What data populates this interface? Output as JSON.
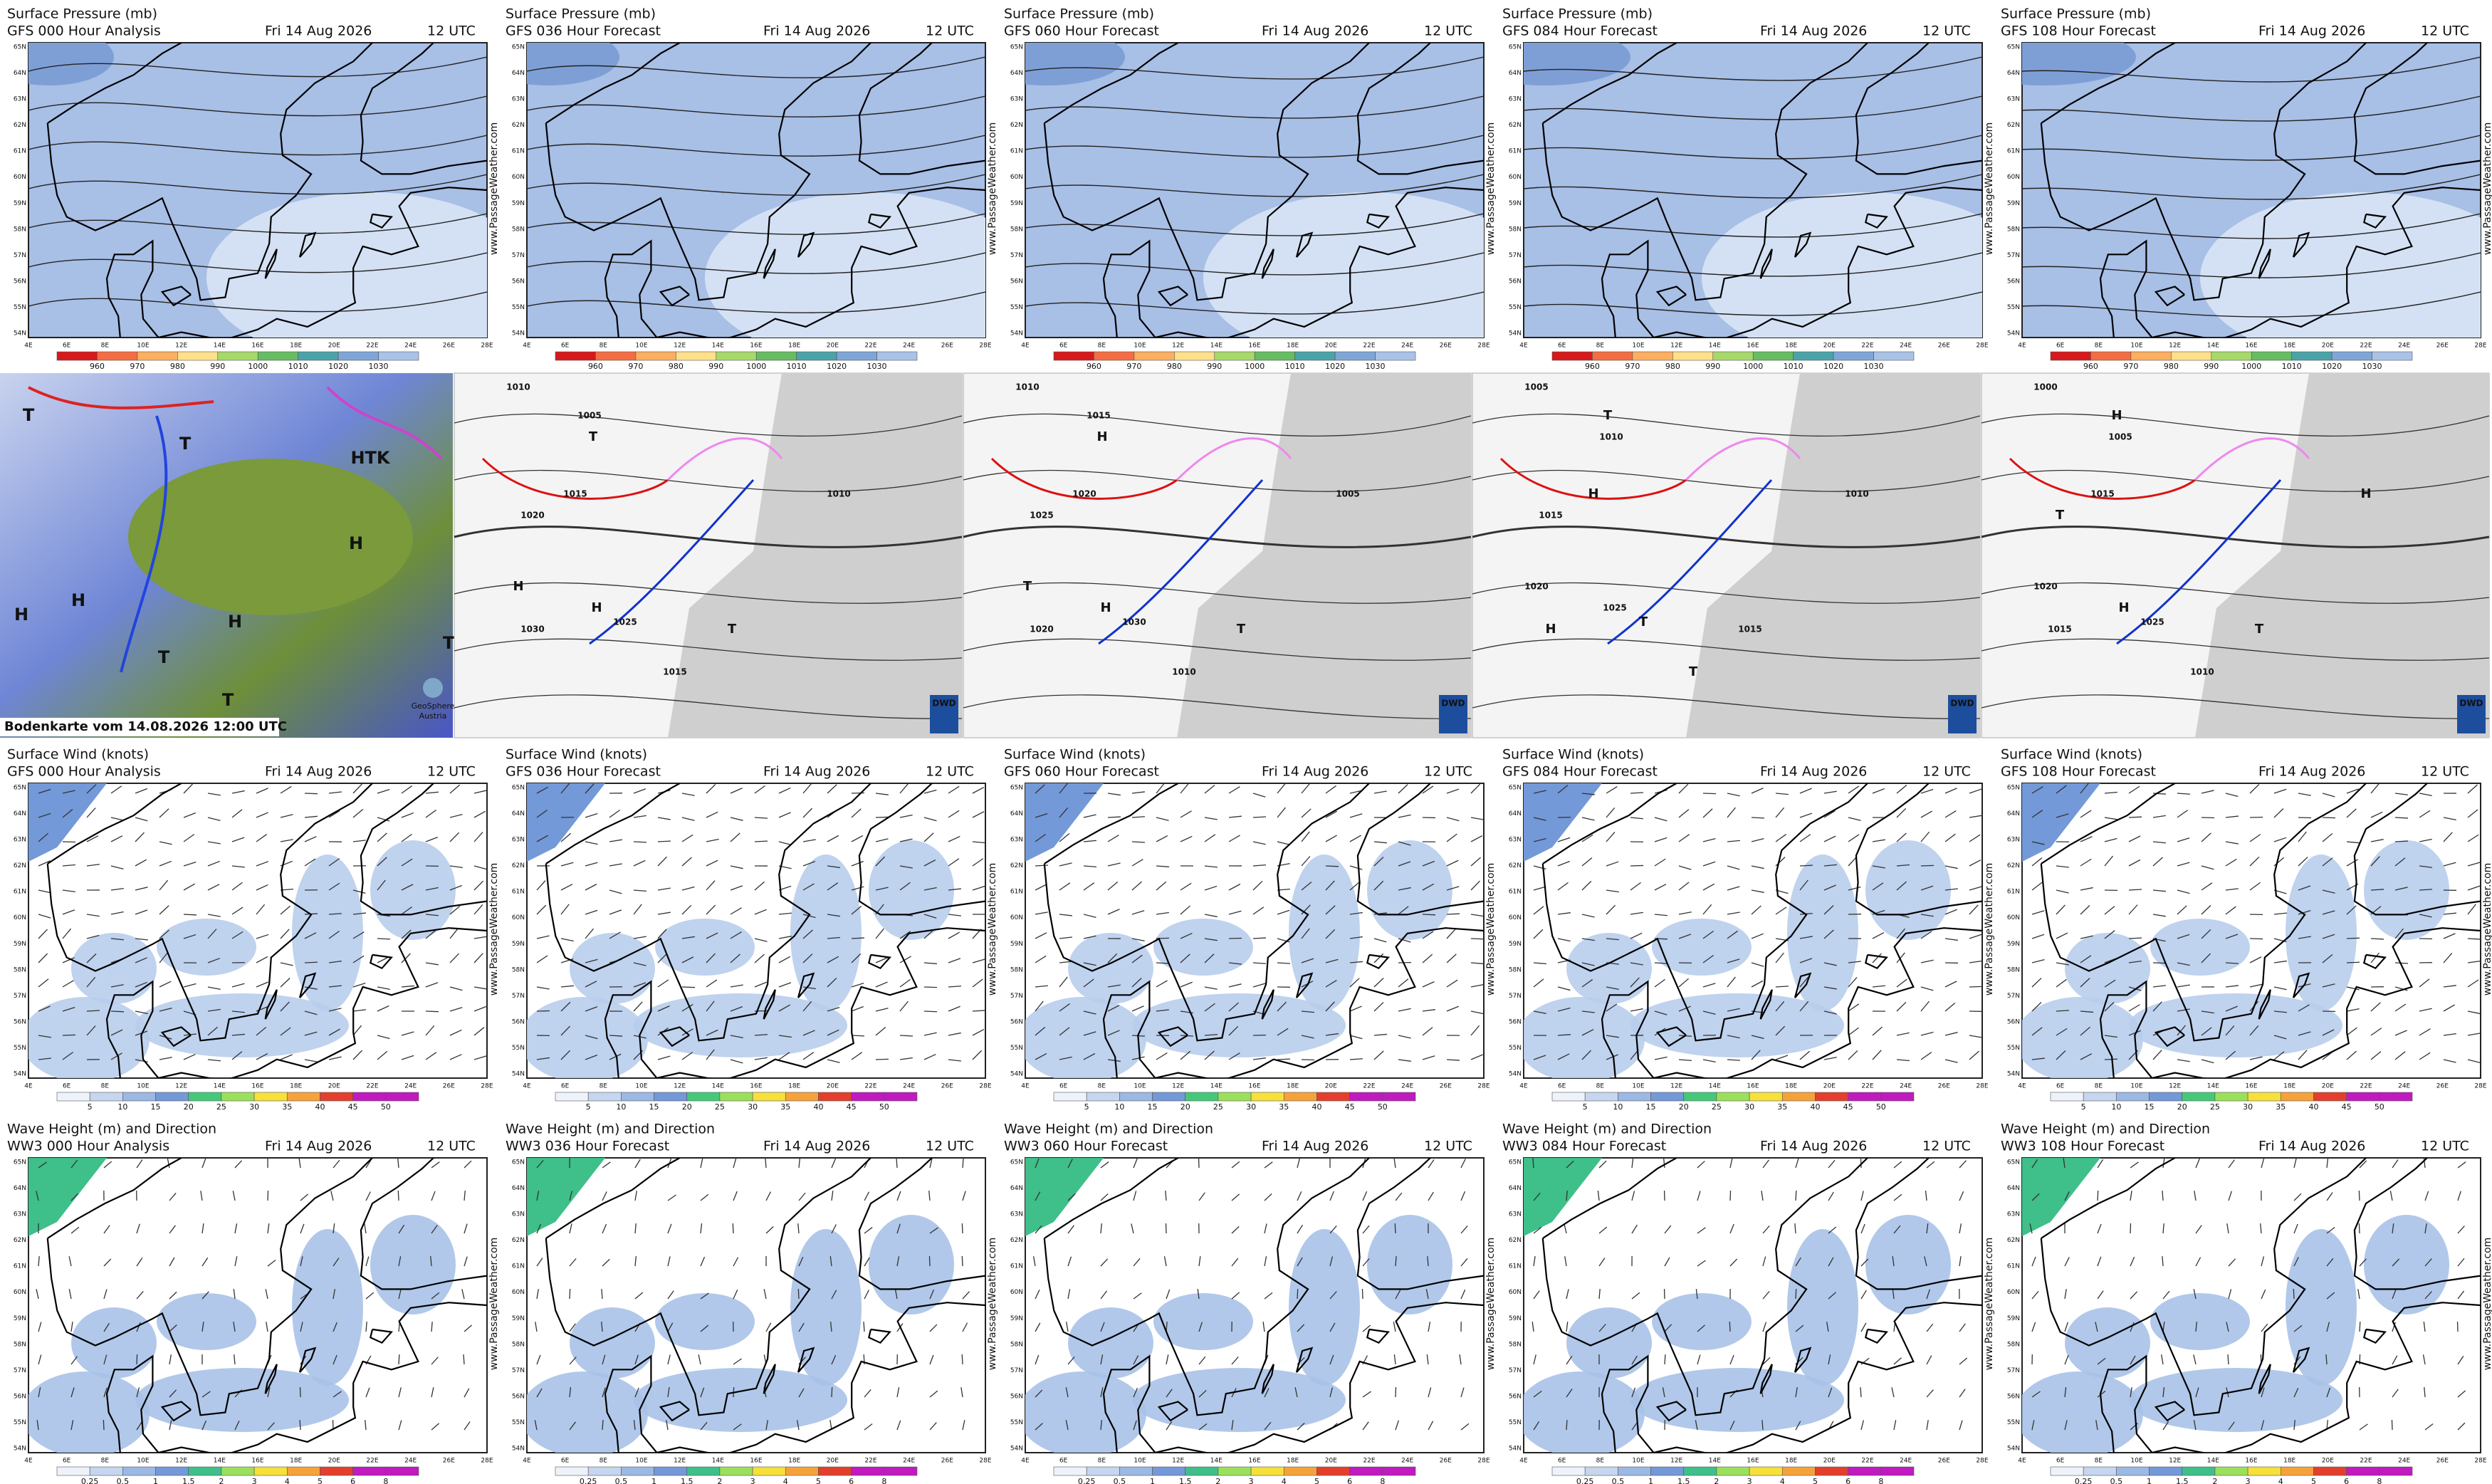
{
  "rows": [
    {
      "title": "Surface Pressure (mb)",
      "panels": [
        {
          "model": "GFS 000 Hour Analysis",
          "date": "Fri 14 Aug 2026",
          "time": "12 UTC"
        },
        {
          "model": "GFS 036 Hour Forecast",
          "date": "Fri 14 Aug 2026",
          "time": "12 UTC"
        },
        {
          "model": "GFS 060 Hour Forecast",
          "date": "Fri 14 Aug 2026",
          "time": "12 UTC"
        },
        {
          "model": "GFS 084 Hour Forecast",
          "date": "Fri 14 Aug 2026",
          "time": "12 UTC"
        },
        {
          "model": "GFS 108 Hour Forecast",
          "date": "Fri 14 Aug 2026",
          "time": "12 UTC"
        }
      ],
      "scale": [
        "960",
        "970",
        "980",
        "990",
        "1000",
        "1010",
        "1020",
        "1030"
      ]
    },
    {
      "title": "Surface Wind (knots)",
      "panels": [
        {
          "model": "GFS 000 Hour Analysis",
          "date": "Fri 14 Aug 2026",
          "time": "12 UTC"
        },
        {
          "model": "GFS 036 Hour Forecast",
          "date": "Fri 14 Aug 2026",
          "time": "12 UTC"
        },
        {
          "model": "GFS 060 Hour Forecast",
          "date": "Fri 14 Aug 2026",
          "time": "12 UTC"
        },
        {
          "model": "GFS 084 Hour Forecast",
          "date": "Fri 14 Aug 2026",
          "time": "12 UTC"
        },
        {
          "model": "GFS 108 Hour Forecast",
          "date": "Fri 14 Aug 2026",
          "time": "12 UTC"
        }
      ],
      "scale": [
        "5",
        "10",
        "15",
        "20",
        "25",
        "30",
        "35",
        "40",
        "45",
        "50"
      ]
    },
    {
      "title": "Wave Height (m) and Direction",
      "panels": [
        {
          "model": "WW3 000 Hour Analysis",
          "date": "Fri 14 Aug 2026",
          "time": "12 UTC"
        },
        {
          "model": "WW3 036 Hour Forecast",
          "date": "Fri 14 Aug 2026",
          "time": "12 UTC"
        },
        {
          "model": "WW3 060 Hour Forecast",
          "date": "Fri 14 Aug 2026",
          "time": "12 UTC"
        },
        {
          "model": "WW3 084 Hour Forecast",
          "date": "Fri 14 Aug 2026",
          "time": "12 UTC"
        },
        {
          "model": "WW3 108 Hour Forecast",
          "date": "Fri 14 Aug 2026",
          "time": "12 UTC"
        }
      ],
      "scale": [
        "0.25",
        "0.5",
        "1",
        "1.5",
        "2",
        "3",
        "4",
        "5",
        "6",
        "8"
      ]
    }
  ],
  "watermark": "www.PassageWeather.com",
  "lat_labels": [
    "54N",
    "55N",
    "56N",
    "57N",
    "58N",
    "59N",
    "60N",
    "61N",
    "62N",
    "63N",
    "64N",
    "65N"
  ],
  "lon_labels": [
    "4E",
    "6E",
    "8E",
    "10E",
    "12E",
    "14E",
    "16E",
    "18E",
    "20E",
    "22E",
    "24E",
    "26E",
    "28E"
  ],
  "analysis": {
    "caption": "Bodenkarte vom 14.08.2026 12:00 UTC",
    "credit": "GeoSphere",
    "credit_sub": "Austria",
    "labels": [
      "T",
      "T",
      "HTK",
      "H",
      "H",
      "H",
      "T",
      "T",
      "T",
      "H"
    ]
  },
  "dwd_charts": [
    {
      "logo": "DWD",
      "labels": [
        "1010",
        "1005",
        "T",
        "1015",
        "1020",
        "H",
        "1025",
        "H",
        "1030",
        "T",
        "1015",
        "1010"
      ]
    },
    {
      "logo": "DWD",
      "labels": [
        "1010",
        "1015",
        "H",
        "1020",
        "1025",
        "T",
        "1030",
        "H",
        "1020",
        "T",
        "1010",
        "1005"
      ]
    },
    {
      "logo": "DWD",
      "labels": [
        "1005",
        "T",
        "1010",
        "H",
        "1015",
        "1020",
        "T",
        "1025",
        "H",
        "1015",
        "T",
        "1010"
      ]
    },
    {
      "logo": "DWD",
      "labels": [
        "1000",
        "H",
        "1005",
        "1015",
        "T",
        "1020",
        "1025",
        "H",
        "1015",
        "T",
        "1010",
        "H"
      ]
    }
  ]
}
